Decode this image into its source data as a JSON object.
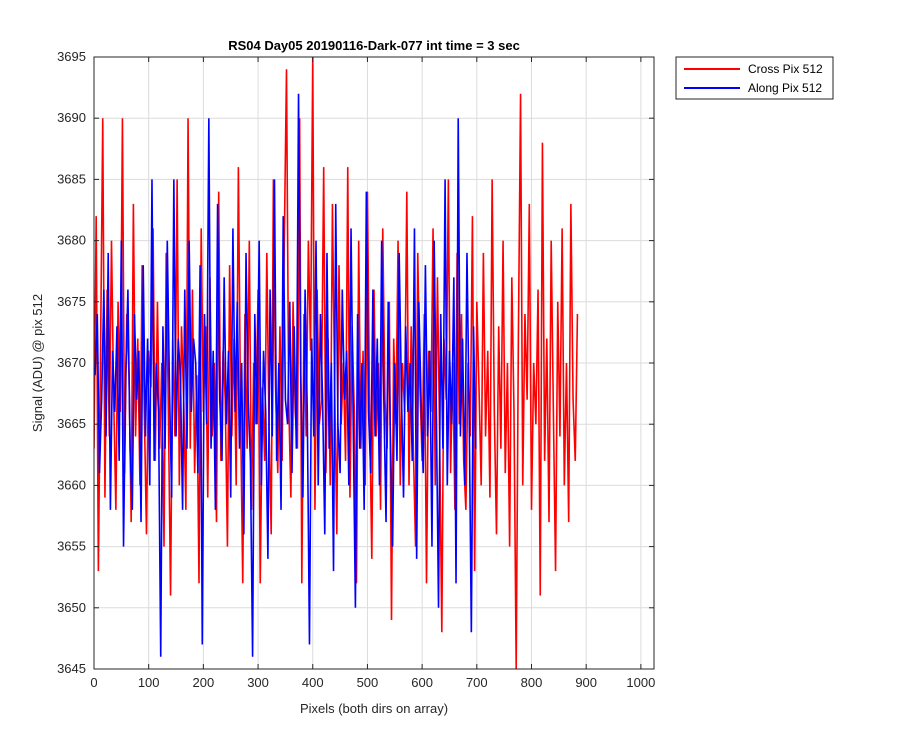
{
  "chart_data": {
    "type": "line",
    "title": "RS04 Day05 20190116-Dark-077 int time = 3 sec",
    "xlabel": "Pixels (both dirs on array)",
    "ylabel": "Signal (ADU) @ pix 512",
    "xlim": [
      0,
      1024
    ],
    "ylim": [
      3645,
      3695
    ],
    "xticks": [
      0,
      100,
      200,
      300,
      400,
      500,
      600,
      700,
      800,
      900,
      1000
    ],
    "yticks": [
      3645,
      3650,
      3655,
      3660,
      3665,
      3670,
      3675,
      3680,
      3685,
      3690,
      3695
    ],
    "xtick_labels": [
      "0",
      "100",
      "200",
      "300",
      "400",
      "500",
      "600",
      "700",
      "800",
      "900",
      "1000"
    ],
    "ytick_labels": [
      "3645",
      "3650",
      "3655",
      "3660",
      "3665",
      "3670",
      "3675",
      "3680",
      "3685",
      "3690",
      "3695"
    ],
    "grid": true,
    "legend": "outside-top-right",
    "series": [
      {
        "name": "Cross Pix 512",
        "color": "#ff0000",
        "x_start": 0,
        "x_step": 4,
        "values": [
          3663,
          3682,
          3653,
          3671,
          3690,
          3659,
          3676,
          3664,
          3680,
          3667,
          3658,
          3675,
          3666,
          3690,
          3661,
          3674,
          3669,
          3657,
          3683,
          3664,
          3672,
          3660,
          3678,
          3666,
          3656,
          3671,
          3668,
          3681,
          3662,
          3675,
          3663,
          3670,
          3655,
          3679,
          3666,
          3651,
          3672,
          3664,
          3685,
          3660,
          3673,
          3667,
          3658,
          3690,
          3663,
          3676,
          3661,
          3669,
          3652,
          3681,
          3666,
          3673,
          3659,
          3677,
          3664,
          3670,
          3657,
          3684,
          3662,
          3671,
          3667,
          3655,
          3678,
          3664,
          3672,
          3660,
          3686,
          3666,
          3652,
          3674,
          3663,
          3680,
          3658,
          3670,
          3665,
          3676,
          3652,
          3668,
          3662,
          3679,
          3665,
          3656,
          3685,
          3668,
          3661,
          3673,
          3662,
          3680,
          3694,
          3667,
          3659,
          3675,
          3666,
          3663,
          3690,
          3652,
          3674,
          3664,
          3680,
          3671,
          3695,
          3658,
          3676,
          3665,
          3667,
          3686,
          3661,
          3672,
          3660,
          3683,
          3668,
          3656,
          3678,
          3665,
          3670,
          3662,
          3686,
          3659,
          3673,
          3666,
          3652,
          3680,
          3663,
          3671,
          3660,
          3684,
          3666,
          3654,
          3676,
          3664,
          3670,
          3658,
          3681,
          3667,
          3663,
          3675,
          3649,
          3672,
          3665,
          3680,
          3660,
          3670,
          3666,
          3684,
          3660,
          3673,
          3663,
          3655,
          3679,
          3668,
          3662,
          3674,
          3652,
          3671,
          3666,
          3681,
          3660,
          3677,
          3664,
          3648,
          3672,
          3667,
          3685,
          3661,
          3670,
          3658,
          3679,
          3665,
          3674,
          3662,
          3658,
          3670,
          3664,
          3682,
          3653,
          3675,
          3668,
          3660,
          3679,
          3664,
          3671,
          3659,
          3685,
          3666,
          3656,
          3673,
          3663,
          3680,
          3661,
          3670,
          3655,
          3677,
          3666,
          3645,
          3672,
          3692,
          3660,
          3674,
          3667,
          3683,
          3658,
          3670,
          3665,
          3676,
          3651,
          3688,
          3662,
          3672,
          3657,
          3680,
          3666,
          3653,
          3675,
          3664,
          3681,
          3660,
          3670,
          3657,
          3683,
          3667,
          3662,
          3674
        ]
      },
      {
        "name": "Along Pix 512",
        "color": "#0000ff",
        "x_start": 2,
        "x_step": 4,
        "values": [
          3669,
          3674,
          3661,
          3667,
          3676,
          3664,
          3679,
          3658,
          3671,
          3666,
          3673,
          3662,
          3680,
          3655,
          3669,
          3676,
          3663,
          3658,
          3674,
          3667,
          3671,
          3657,
          3678,
          3664,
          3672,
          3660,
          3685,
          3662,
          3670,
          3666,
          3646,
          3673,
          3663,
          3680,
          3668,
          3659,
          3685,
          3664,
          3672,
          3669,
          3658,
          3676,
          3663,
          3680,
          3666,
          3672,
          3670,
          3661,
          3678,
          3647,
          3674,
          3665,
          3690,
          3663,
          3671,
          3658,
          3683,
          3667,
          3662,
          3677,
          3665,
          3671,
          3659,
          3681,
          3666,
          3675,
          3663,
          3670,
          3656,
          3679,
          3667,
          3662,
          3646,
          3674,
          3665,
          3680,
          3660,
          3671,
          3666,
          3654,
          3676,
          3664,
          3685,
          3662,
          3670,
          3658,
          3682,
          3667,
          3665,
          3675,
          3661,
          3673,
          3663,
          3692,
          3669,
          3659,
          3676,
          3666,
          3647,
          3672,
          3664,
          3680,
          3660,
          3674,
          3667,
          3656,
          3679,
          3663,
          3670,
          3653,
          3683,
          3665,
          3661,
          3676,
          3667,
          3671,
          3660,
          3681,
          3665,
          3650,
          3674,
          3663,
          3670,
          3658,
          3684,
          3666,
          3661,
          3676,
          3664,
          3672,
          3660,
          3680,
          3667,
          3657,
          3675,
          3664,
          3655,
          3670,
          3662,
          3679,
          3668,
          3659,
          3673,
          3666,
          3670,
          3662,
          3681,
          3654,
          3675,
          3667,
          3661,
          3678,
          3664,
          3671,
          3655,
          3680,
          3666,
          3650,
          3674,
          3663,
          3685,
          3660,
          3671,
          3665,
          3677,
          3652,
          3690,
          3664,
          3672,
          3660,
          3679,
          3666,
          3648,
          3673,
          3663
        ]
      }
    ]
  }
}
